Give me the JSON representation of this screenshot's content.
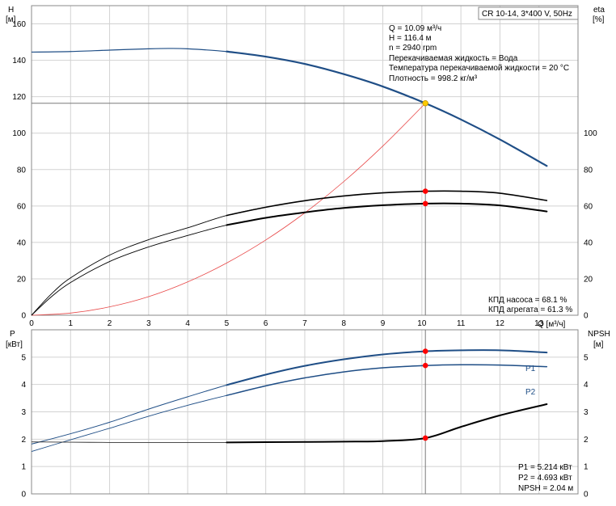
{
  "chart_data": [
    {
      "type": "line",
      "title": "CR 10-14, 3*400 V, 50Hz",
      "y_left_label": [
        "H",
        "[м]"
      ],
      "y_right_label": [
        "eta",
        "[%]"
      ],
      "xlabel": "Q [м³/ч]",
      "xlim": [
        0,
        14
      ],
      "ylim_left": [
        0,
        170
      ],
      "ylim_right": [
        0,
        170
      ],
      "x_ticks": [
        0,
        1,
        2,
        3,
        4,
        5,
        6,
        7,
        8,
        9,
        10,
        11,
        12,
        13
      ],
      "y_left_ticks": [
        0,
        20,
        40,
        60,
        80,
        100,
        120,
        140,
        160
      ],
      "y_right_ticks": [
        0,
        20,
        40,
        60,
        80,
        100
      ],
      "info_lines": [
        "Q = 10.09 м³/ч",
        "H = 116.4 м",
        "n = 2940 rpm",
        "Перекачиваемая жидкость = Вода",
        "Температура перекачиваемой жидкости = 20 °C",
        "Плотность = 998.2 кг/м³"
      ],
      "efficiency_lines": [
        "КПД насоса = 68.1 %",
        "КПД агрегата = 61.3 %"
      ],
      "duty_point": {
        "x": 10.09,
        "y": 116.4
      },
      "series": [
        {
          "id": "H",
          "color": "#1f4e86",
          "x": [
            0,
            1,
            2,
            3,
            3.5,
            4,
            5,
            6,
            7,
            8,
            9,
            10.09,
            11,
            12,
            13.2
          ],
          "y": [
            144.5,
            144.8,
            145.6,
            146.3,
            146.5,
            146.3,
            144.8,
            142,
            138,
            132.4,
            125.6,
            116.4,
            107.5,
            96.5,
            82
          ]
        },
        {
          "id": "system",
          "color": "#e84848",
          "x": [
            0,
            1,
            2,
            3,
            4,
            5,
            6,
            7,
            8,
            9,
            10.09
          ],
          "y": [
            0,
            1.2,
            4.6,
            10.2,
            18.3,
            28.7,
            41.3,
            56.2,
            73.4,
            92.9,
            116.4
          ]
        },
        {
          "id": "eta-pump",
          "color": "#000000",
          "x": [
            0,
            0.5,
            1,
            2,
            3,
            4,
            5,
            6,
            7,
            8,
            9,
            10.09,
            11,
            12,
            13.2
          ],
          "y": [
            0,
            11.5,
            20.5,
            33,
            41.5,
            48,
            54.8,
            59.3,
            62.9,
            65.5,
            67.2,
            68.1,
            68.1,
            67,
            63
          ]
        },
        {
          "id": "eta-unit",
          "color": "#000000",
          "x": [
            0,
            0.5,
            1,
            2,
            3,
            4,
            5,
            6,
            7,
            8,
            9,
            10.09,
            11,
            12,
            13.2
          ],
          "y": [
            0,
            10,
            18,
            29.5,
            37.5,
            43.8,
            49.5,
            53.5,
            56.5,
            58.9,
            60.4,
            61.3,
            61.3,
            60.3,
            57
          ]
        }
      ],
      "markers": [
        {
          "x": 10.09,
          "y": 68.1,
          "color": "#ff0000"
        },
        {
          "x": 10.09,
          "y": 61.3,
          "color": "#ff0000"
        },
        {
          "x": 10.09,
          "y": 116.4,
          "color": "#ffcc00"
        }
      ]
    },
    {
      "type": "line",
      "y_left_label": [
        "P",
        "[кВт]"
      ],
      "y_right_label": [
        "NPSH",
        "[м]"
      ],
      "xlim": [
        0,
        14
      ],
      "ylim": [
        0,
        6
      ],
      "y_ticks": [
        0,
        1,
        2,
        3,
        4,
        5
      ],
      "info_lines": [
        "P1 = 5.214 кВт",
        "P2 = 4.693 кВт",
        "NPSH = 2.04 м"
      ],
      "series": [
        {
          "id": "P1",
          "name": "P1",
          "color": "#1f4e86",
          "x": [
            0,
            1,
            2,
            3,
            4,
            5,
            6,
            7,
            8,
            9,
            10.09,
            11,
            12,
            13.2
          ],
          "y": [
            1.82,
            2.2,
            2.62,
            3.1,
            3.55,
            3.98,
            4.36,
            4.68,
            4.92,
            5.1,
            5.214,
            5.25,
            5.25,
            5.17
          ]
        },
        {
          "id": "P2",
          "name": "P2",
          "color": "#1f4e86",
          "x": [
            0,
            1,
            2,
            3,
            4,
            5,
            6,
            7,
            8,
            9,
            10.09,
            11,
            12,
            13.2
          ],
          "y": [
            1.55,
            1.98,
            2.4,
            2.84,
            3.24,
            3.6,
            3.95,
            4.24,
            4.46,
            4.61,
            4.693,
            4.72,
            4.71,
            4.65
          ]
        },
        {
          "id": "NPSH",
          "color": "#000000",
          "x": [
            0,
            1,
            2,
            3,
            4,
            5,
            6,
            7,
            8,
            9,
            10.09,
            11,
            12,
            13.2
          ],
          "y": [
            1.9,
            1.89,
            1.88,
            1.88,
            1.88,
            1.88,
            1.89,
            1.9,
            1.91,
            1.93,
            2.04,
            2.45,
            2.87,
            3.28
          ]
        }
      ],
      "markers": [
        {
          "x": 10.09,
          "y": 5.214,
          "color": "#ff0000"
        },
        {
          "x": 10.09,
          "y": 4.693,
          "color": "#ff0000"
        },
        {
          "x": 10.09,
          "y": 2.04,
          "color": "#ff0000"
        }
      ]
    }
  ]
}
